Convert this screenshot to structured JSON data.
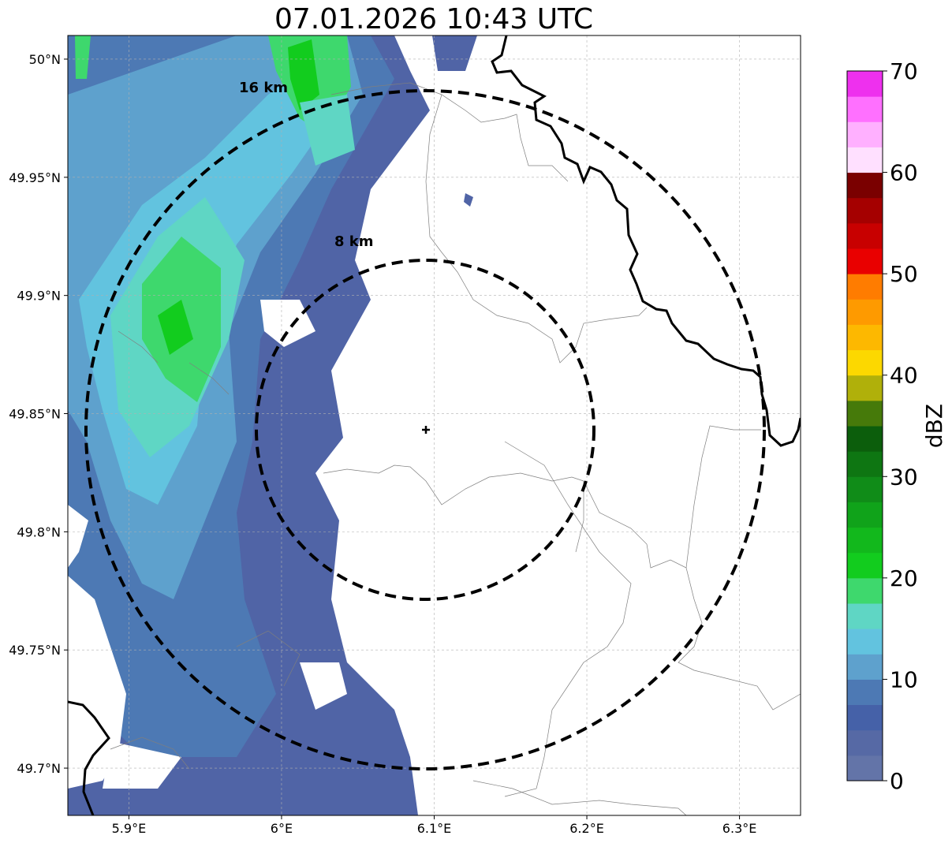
{
  "title": "07.01.2026 10:43 UTC",
  "map": {
    "lon_range": [
      5.86,
      6.34
    ],
    "lat_range": [
      49.68,
      50.01
    ],
    "x_ticks": [
      {
        "value": 5.9,
        "label": "5.9°E"
      },
      {
        "value": 6.0,
        "label": "6°E"
      },
      {
        "value": 6.1,
        "label": "6.1°E"
      },
      {
        "value": 6.2,
        "label": "6.2°E"
      },
      {
        "value": 6.3,
        "label": "6.3°E"
      }
    ],
    "y_ticks": [
      {
        "value": 50.0,
        "label": "50°N"
      },
      {
        "value": 49.95,
        "label": "49.95°N"
      },
      {
        "value": 49.9,
        "label": "49.9°N"
      },
      {
        "value": 49.85,
        "label": "49.85°N"
      },
      {
        "value": 49.8,
        "label": "49.8°N"
      },
      {
        "value": 49.75,
        "label": "49.75°N"
      },
      {
        "value": 49.7,
        "label": "49.7°N"
      }
    ],
    "grid": true,
    "radar_site": {
      "lon": 6.094,
      "lat": 49.843
    },
    "range_rings": [
      {
        "radius_km": 8,
        "label": "8 km"
      },
      {
        "radius_km": 16,
        "label": "16 km"
      }
    ]
  },
  "colorbar": {
    "label": "dBZ",
    "min": 0,
    "max": 70,
    "step": 2.5,
    "tick_labels": [
      "0",
      "10",
      "20",
      "30",
      "40",
      "50",
      "60",
      "70"
    ],
    "colors": [
      "#6374a8",
      "#5669a5",
      "#4561a8",
      "#4d79b4",
      "#5ea1cd",
      "#62c3df",
      "#5fd6c4",
      "#3ed86d",
      "#12cc1e",
      "#12b81c",
      "#10a31a",
      "#108c18",
      "#0e7612",
      "#0c5e0c",
      "#467a0a",
      "#b0b00a",
      "#fcd800",
      "#fdb800",
      "#fe9a00",
      "#ff7c00",
      "#e90000",
      "#c80000",
      "#a50000",
      "#7a0000",
      "#ffe0ff",
      "#ffb0ff",
      "#ff70ff",
      "#ee30ee"
    ]
  }
}
